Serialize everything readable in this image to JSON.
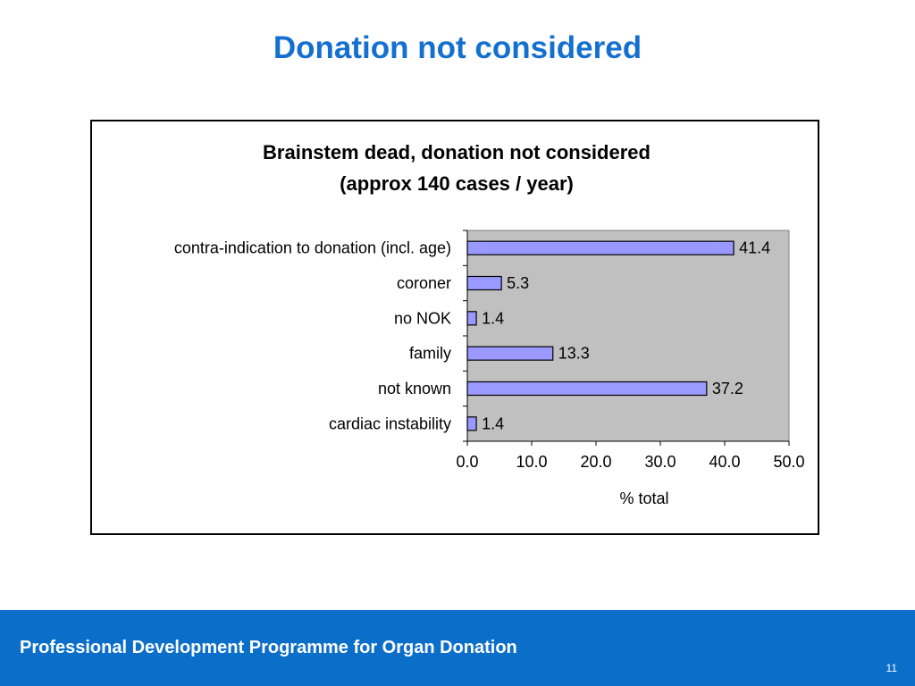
{
  "slide": {
    "title": "Donation not considered",
    "footer": "Professional Development Programme for Organ Donation",
    "page_number": "11"
  },
  "chart_data": {
    "type": "bar",
    "orientation": "horizontal",
    "title_line1": "Brainstem dead, donation not considered",
    "title_line2": "(approx 140 cases / year)",
    "categories": [
      "contra-indication to donation (incl. age)",
      "coroner",
      "no NOK",
      "family",
      "not known",
      "cardiac instability"
    ],
    "values": [
      41.4,
      5.3,
      1.4,
      13.3,
      37.2,
      1.4
    ],
    "value_labels": [
      "41.4",
      "5.3",
      "1.4",
      "13.3",
      "37.2",
      "1.4"
    ],
    "xlabel": "% total",
    "xlim": [
      0,
      50
    ],
    "xticks": [
      "0.0",
      "10.0",
      "20.0",
      "30.0",
      "40.0",
      "50.0"
    ],
    "colors": {
      "bar_fill": "#9999ff",
      "bar_stroke": "#000000",
      "plot_background": "#c0c0c0",
      "title": "#1470d0",
      "footer_background": "#0b6fc9"
    },
    "grid": false,
    "legend": "none"
  }
}
